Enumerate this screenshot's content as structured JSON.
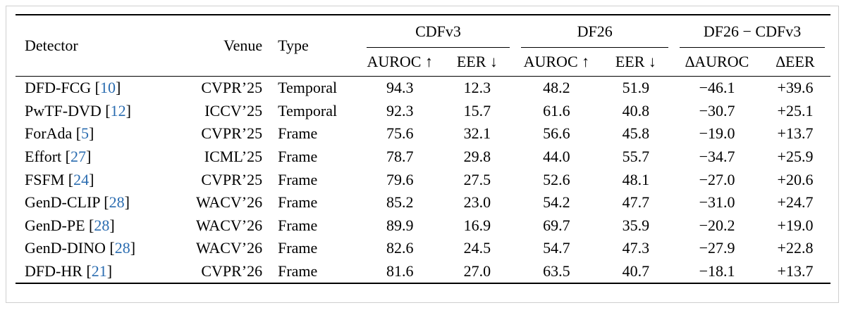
{
  "table": {
    "header": {
      "detector": "Detector",
      "venue": "Venue",
      "type": "Type",
      "group_cdfv3": "CDFv3",
      "group_df26": "DF26",
      "group_delta": "DF26 − CDFv3",
      "auroc_up": "AUROC ↑",
      "eer_down": "EER ↓",
      "auroc_up_2": "AUROC ↑",
      "eer_down_2": "EER ↓",
      "delta_auroc": "∆AUROC",
      "delta_eer": "∆EER"
    },
    "rows": [
      {
        "name": "DFD-FCG",
        "ref": "10",
        "venue": "CVPR’25",
        "type": "Temporal",
        "cdf_auroc": "94.3",
        "cdf_eer": "12.3",
        "df_auroc": "48.2",
        "df_eer": "51.9",
        "d_auroc": "−46.1",
        "d_eer": "+39.6"
      },
      {
        "name": "PwTF-DVD",
        "ref": "12",
        "venue": "ICCV’25",
        "type": "Temporal",
        "cdf_auroc": "92.3",
        "cdf_eer": "15.7",
        "df_auroc": "61.6",
        "df_eer": "40.8",
        "d_auroc": "−30.7",
        "d_eer": "+25.1"
      },
      {
        "name": "ForAda",
        "ref": "5",
        "venue": "CVPR’25",
        "type": "Frame",
        "cdf_auroc": "75.6",
        "cdf_eer": "32.1",
        "df_auroc": "56.6",
        "df_eer": "45.8",
        "d_auroc": "−19.0",
        "d_eer": "+13.7"
      },
      {
        "name": "Effort",
        "ref": "27",
        "venue": "ICML’25",
        "type": "Frame",
        "cdf_auroc": "78.7",
        "cdf_eer": "29.8",
        "df_auroc": "44.0",
        "df_eer": "55.7",
        "d_auroc": "−34.7",
        "d_eer": "+25.9"
      },
      {
        "name": "FSFM",
        "ref": "24",
        "venue": "CVPR’25",
        "type": "Frame",
        "cdf_auroc": "79.6",
        "cdf_eer": "27.5",
        "df_auroc": "52.6",
        "df_eer": "48.1",
        "d_auroc": "−27.0",
        "d_eer": "+20.6"
      },
      {
        "name": "GenD-CLIP",
        "ref": "28",
        "venue": "WACV’26",
        "type": "Frame",
        "cdf_auroc": "85.2",
        "cdf_eer": "23.0",
        "df_auroc": "54.2",
        "df_eer": "47.7",
        "d_auroc": "−31.0",
        "d_eer": "+24.7"
      },
      {
        "name": "GenD-PE",
        "ref": "28",
        "venue": "WACV’26",
        "type": "Frame",
        "cdf_auroc": "89.9",
        "cdf_eer": "16.9",
        "df_auroc": "69.7",
        "df_eer": "35.9",
        "d_auroc": "−20.2",
        "d_eer": "+19.0"
      },
      {
        "name": "GenD-DINO",
        "ref": "28",
        "venue": "WACV’26",
        "type": "Frame",
        "cdf_auroc": "82.6",
        "cdf_eer": "24.5",
        "df_auroc": "54.7",
        "df_eer": "47.3",
        "d_auroc": "−27.9",
        "d_eer": "+22.8"
      },
      {
        "name": "DFD-HR",
        "ref": "21",
        "venue": "CVPR’26",
        "type": "Frame",
        "cdf_auroc": "81.6",
        "cdf_eer": "27.0",
        "df_auroc": "63.5",
        "df_eer": "40.7",
        "d_auroc": "−18.1",
        "d_eer": "+13.7"
      }
    ]
  }
}
